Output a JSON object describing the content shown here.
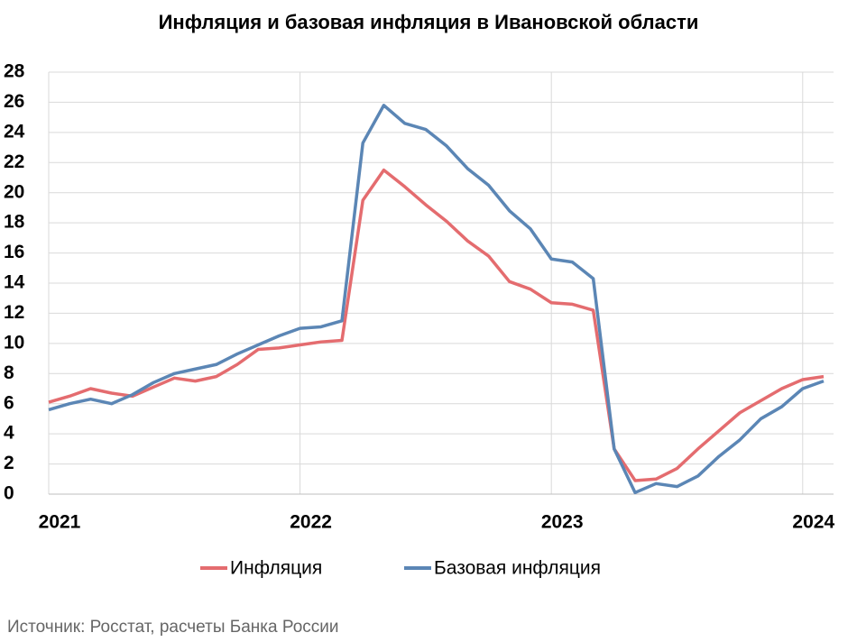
{
  "chart_data": {
    "type": "line",
    "title": "Инфляция и базовая инфляция в Ивановской области",
    "source": "Источник: Росстат, расчеты Банка России",
    "categories": [
      "2021",
      null,
      null,
      null,
      null,
      null,
      null,
      null,
      null,
      null,
      null,
      null,
      "2022",
      null,
      null,
      null,
      null,
      null,
      null,
      null,
      null,
      null,
      null,
      null,
      "2023",
      null,
      null,
      null,
      null,
      null,
      null,
      null,
      null,
      null,
      null,
      null,
      "2024",
      null
    ],
    "series": [
      {
        "name": "Инфляция",
        "color": "#e46c6f",
        "values": [
          6.1,
          6.5,
          7.0,
          6.7,
          6.5,
          7.1,
          7.7,
          7.5,
          7.8,
          8.6,
          9.6,
          9.7,
          9.9,
          10.1,
          10.2,
          19.5,
          21.5,
          20.4,
          19.2,
          18.1,
          16.8,
          15.8,
          14.1,
          13.6,
          12.7,
          12.6,
          12.2,
          3.0,
          0.9,
          1.0,
          1.7,
          3.0,
          4.2,
          5.4,
          6.2,
          7.0,
          7.6,
          7.8
        ]
      },
      {
        "name": "Базовая инфляция",
        "color": "#5b86b5",
        "values": [
          5.6,
          6.0,
          6.3,
          6.0,
          6.6,
          7.4,
          8.0,
          8.3,
          8.6,
          9.3,
          9.9,
          10.5,
          11.0,
          11.1,
          11.5,
          23.3,
          25.8,
          24.6,
          24.2,
          23.1,
          21.6,
          20.5,
          18.8,
          17.6,
          15.6,
          15.4,
          14.3,
          3.0,
          0.1,
          0.7,
          0.5,
          1.2,
          2.5,
          3.6,
          5.0,
          5.8,
          7.0,
          7.5
        ]
      }
    ],
    "ylim": [
      0,
      28
    ],
    "yticks": [
      0,
      2,
      4,
      6,
      8,
      10,
      12,
      14,
      16,
      18,
      20,
      22,
      24,
      26,
      28
    ],
    "grid": true,
    "legend": "bottom"
  }
}
